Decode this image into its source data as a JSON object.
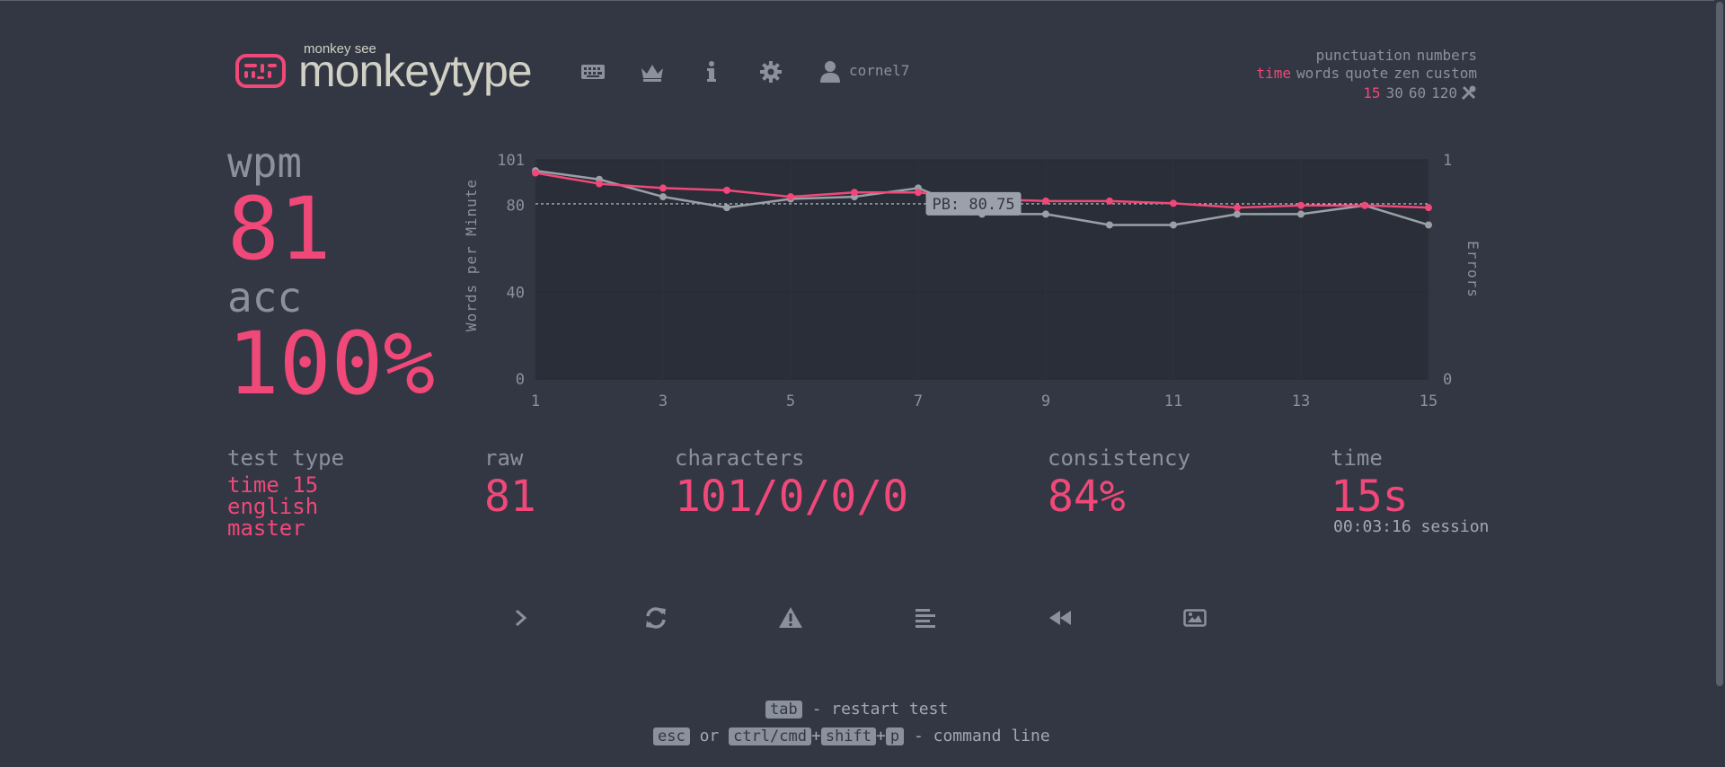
{
  "header": {
    "logo_tagline": "monkey see",
    "logo_text": "monkeytype",
    "nav": [
      "keyboard-icon",
      "crown-icon",
      "info-icon",
      "gear-icon",
      "user-icon"
    ],
    "username": "cornel7"
  },
  "config": {
    "row1": [
      "punctuation",
      "numbers"
    ],
    "row2": [
      "time",
      "words",
      "quote",
      "zen",
      "custom"
    ],
    "row2_active": "time",
    "row3": [
      "15",
      "30",
      "60",
      "120"
    ],
    "row3_active": "15",
    "row3_icon": "wrench-icon"
  },
  "result": {
    "wpm_label": "wpm",
    "wpm": "81",
    "acc_label": "acc",
    "acc": "100%",
    "test_type_label": "test type",
    "test_type_lines": [
      "time 15",
      "english",
      "master"
    ],
    "raw_label": "raw",
    "raw": "81",
    "characters_label": "characters",
    "characters": "101/0/0/0",
    "consistency_label": "consistency",
    "consistency": "84%",
    "time_label": "time",
    "time": "15s",
    "session": "00:03:16 session"
  },
  "actions": [
    "next-test-icon",
    "restart-icon",
    "warning-icon",
    "word-history-icon",
    "replay-icon",
    "screenshot-icon"
  ],
  "footer": {
    "line1_key": "tab",
    "line1_text": "- restart test",
    "line2_key1": "esc",
    "line2_or": "or",
    "line2_key2": "ctrl/cmd",
    "line2_key3": "shift",
    "line2_key4": "p",
    "line2_plus": "+",
    "line2_text": "- command line"
  },
  "colors": {
    "accent": "#f04879",
    "background": "#323743",
    "text": "#8a919c",
    "raw_line": "#9aa0a8"
  },
  "chart_data": {
    "type": "line",
    "x": [
      1,
      2,
      3,
      4,
      5,
      6,
      7,
      8,
      9,
      10,
      11,
      12,
      13,
      14,
      15
    ],
    "xticks": [
      "1",
      "3",
      "5",
      "7",
      "9",
      "11",
      "13",
      "15"
    ],
    "ylabel": "Words per Minute",
    "y2label": "Errors",
    "ylim": [
      0,
      101
    ],
    "yticks": [
      "101",
      "80",
      "40",
      "0"
    ],
    "y2ticks": [
      "1",
      "0"
    ],
    "series": [
      {
        "values": [
          95,
          90,
          88,
          87,
          84,
          86,
          86,
          83,
          82,
          82,
          81,
          79,
          80,
          80,
          79
        ]
      },
      {
        "values": [
          96,
          92,
          84,
          79,
          83,
          84,
          88,
          76,
          76,
          71,
          71,
          76,
          76,
          80,
          71
        ]
      }
    ],
    "pb_label": "PB: 80.75",
    "pb_value": 80.75
  }
}
